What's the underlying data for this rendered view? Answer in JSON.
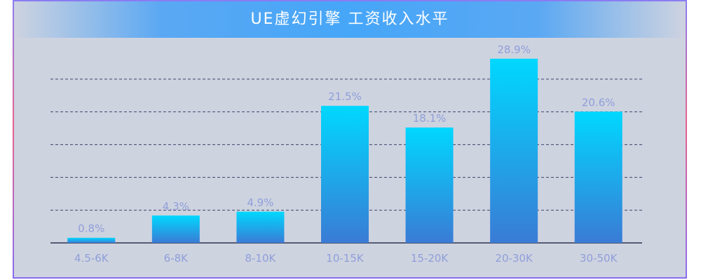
{
  "chart_data": {
    "type": "bar",
    "title": "UE虚幻引擎 工资收入水平",
    "categories": [
      "4.5-6K",
      "6-8K",
      "8-10K",
      "10-15K",
      "15-20K",
      "20-30K",
      "30-50K"
    ],
    "values": [
      0.8,
      4.3,
      4.9,
      21.5,
      18.1,
      28.9,
      20.6
    ],
    "value_labels": [
      "0.8%",
      "4.3%",
      "4.9%",
      "21.5%",
      "18.1%",
      "28.9%",
      "20.6%"
    ],
    "ylim": [
      0,
      25.7
    ],
    "grid": true,
    "colors": {
      "bar_top": "#00d8ff",
      "bar_bottom": "#3a7bd5",
      "grid": "#3c4668",
      "text": "#8f9fd9",
      "background": "#ced3e0"
    }
  }
}
